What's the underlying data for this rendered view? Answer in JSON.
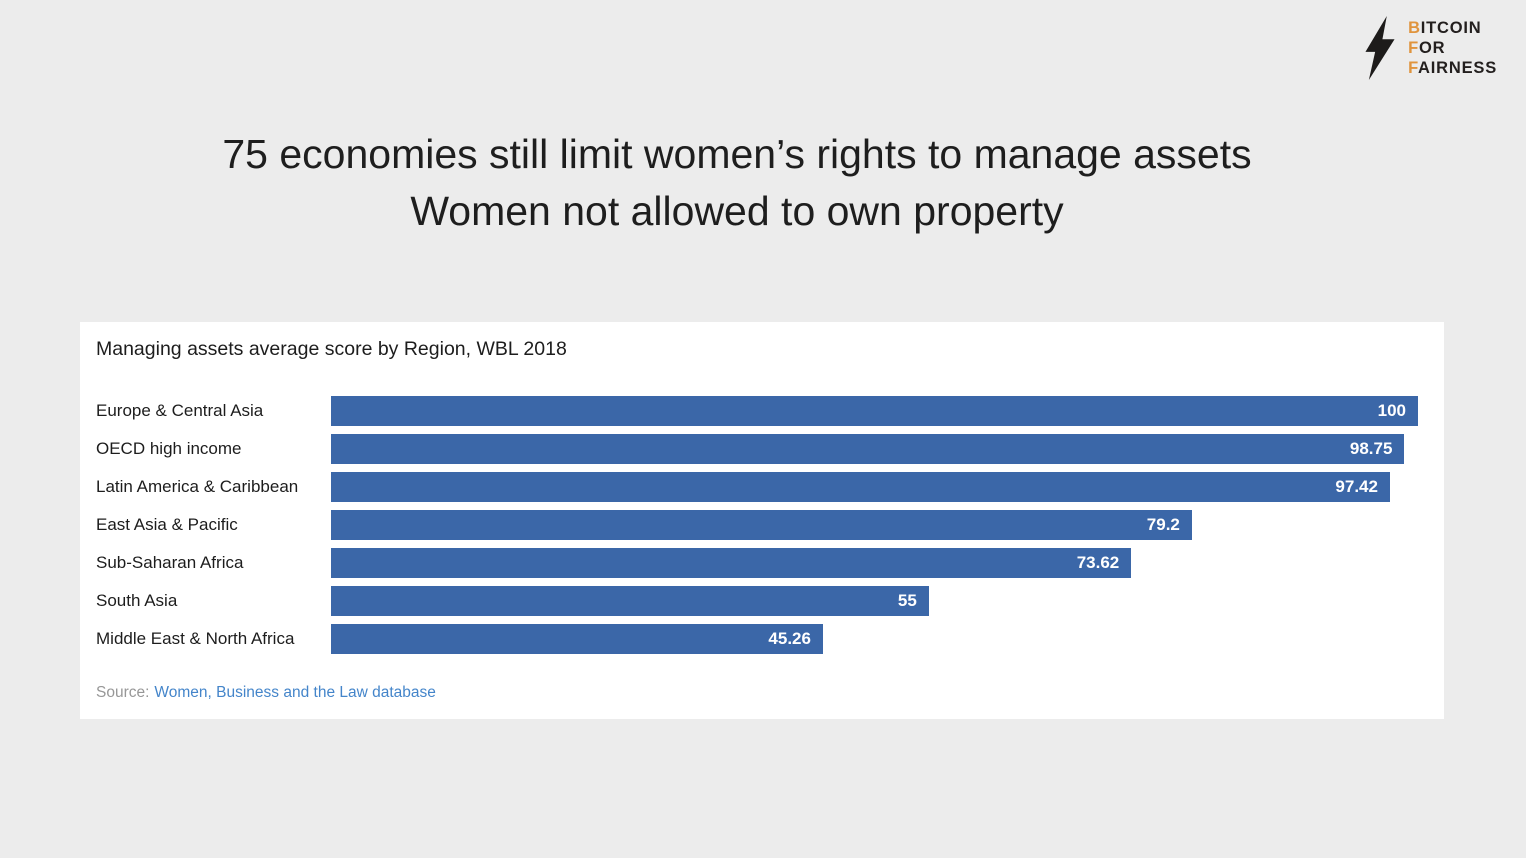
{
  "logo": {
    "name": "Bitcoin For Fairness",
    "accent_color": "#e0943d",
    "dark_color": "#231f1e",
    "lines": [
      {
        "first": "B",
        "rest": "ITCOIN"
      },
      {
        "first": "F",
        "rest": "OR"
      },
      {
        "first": "F",
        "rest": "AIRNESS"
      }
    ]
  },
  "heading": {
    "line1": "75 economies still limit women’s rights to manage assets",
    "line2": "Women not allowed to own property"
  },
  "chart_data": {
    "type": "bar",
    "orientation": "horizontal",
    "title": "Managing assets average score by Region, WBL 2018",
    "categories": [
      "Europe & Central Asia",
      "OECD high income",
      "Latin America & Caribbean",
      "East Asia & Pacific",
      "Sub-Saharan Africa",
      "South Asia",
      "Middle East & North Africa"
    ],
    "values": [
      100,
      98.75,
      97.42,
      79.2,
      73.62,
      55,
      45.26
    ],
    "value_labels": [
      "100",
      "98.75",
      "97.42",
      "79.2",
      "73.62",
      "55",
      "45.26"
    ],
    "xlim": [
      0,
      100
    ],
    "grid": false,
    "legend": "none",
    "bar_color": "#3b67a8",
    "value_label_color": "#ffffff",
    "source_prefix": "Source:",
    "source_link": "Women, Business and the Law database"
  }
}
